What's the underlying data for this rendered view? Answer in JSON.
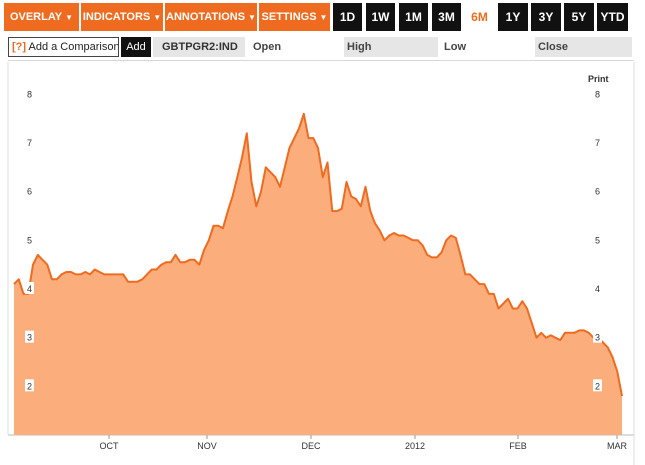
{
  "toolbar": {
    "menus": [
      {
        "label": "OVERLAY",
        "caret": "▼"
      },
      {
        "label": "INDICATORS",
        "caret": "▼"
      },
      {
        "label": "ANNOTATIONS",
        "caret": "▼"
      },
      {
        "label": "SETTINGS",
        "caret": "▼"
      }
    ],
    "ranges": [
      {
        "label": "1D",
        "active": false
      },
      {
        "label": "1W",
        "active": false
      },
      {
        "label": "1M",
        "active": false
      },
      {
        "label": "3M",
        "active": false
      },
      {
        "label": "6M",
        "active": true
      },
      {
        "label": "1Y",
        "active": false
      },
      {
        "label": "3Y",
        "active": false
      },
      {
        "label": "5Y",
        "active": false
      },
      {
        "label": "YTD",
        "active": false
      }
    ]
  },
  "compare": {
    "help_marker": "[?]",
    "placeholder": "Add a Comparison",
    "add_label": "Add"
  },
  "quote": {
    "ticker": "GBTPGR2:IND",
    "open_label": "Open",
    "high_label": "High",
    "low_label": "Low",
    "close_label": "Close"
  },
  "print_label": "Print",
  "colors": {
    "accent": "#ef6b1f",
    "fill": "#fbad7c",
    "line": "#ef6b1f"
  },
  "chart_data": {
    "type": "area",
    "x_tick_labels": [
      "OCT",
      "NOV",
      "DEC",
      "2012",
      "FEB",
      "MAR"
    ],
    "y_tick_labels": [
      "2",
      "3",
      "4",
      "5",
      "6",
      "7",
      "8"
    ],
    "ylim": [
      1.0,
      8.5
    ],
    "grid": false,
    "series": [
      {
        "values": [
          4.1,
          4.2,
          3.9,
          3.9,
          4.5,
          4.7,
          4.6,
          4.5,
          4.2,
          4.2,
          4.3,
          4.35,
          4.35,
          4.3,
          4.3,
          4.35,
          4.3,
          4.4,
          4.35,
          4.3,
          4.3,
          4.3,
          4.3,
          4.3,
          4.15,
          4.15,
          4.15,
          4.2,
          4.3,
          4.4,
          4.4,
          4.5,
          4.55,
          4.55,
          4.7,
          4.55,
          4.55,
          4.6,
          4.6,
          4.5,
          4.8,
          5.0,
          5.3,
          5.3,
          5.25,
          5.6,
          5.9,
          6.3,
          6.7,
          7.2,
          6.2,
          5.7,
          6.0,
          6.5,
          6.4,
          6.3,
          6.1,
          6.5,
          6.9,
          7.1,
          7.3,
          7.6,
          7.1,
          7.1,
          6.9,
          6.3,
          6.6,
          5.6,
          5.6,
          5.65,
          6.2,
          5.9,
          5.85,
          5.7,
          6.1,
          5.6,
          5.35,
          5.2,
          5.0,
          5.1,
          5.15,
          5.1,
          5.1,
          5.05,
          5.0,
          5.0,
          4.9,
          4.7,
          4.65,
          4.65,
          4.75,
          5.0,
          5.1,
          5.05,
          4.7,
          4.3,
          4.3,
          4.2,
          4.1,
          4.1,
          3.9,
          3.9,
          3.6,
          3.7,
          3.8,
          3.6,
          3.6,
          3.75,
          3.6,
          3.3,
          3.0,
          3.1,
          3.0,
          3.05,
          3.0,
          2.95,
          3.1,
          3.1,
          3.1,
          3.15,
          3.15,
          3.1,
          3.0,
          3.0,
          2.9,
          2.8,
          2.6,
          2.3,
          1.8
        ]
      }
    ]
  }
}
